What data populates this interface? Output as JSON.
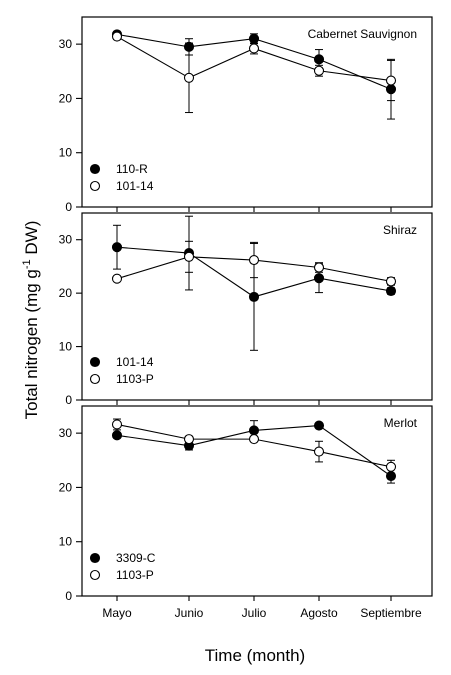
{
  "chart_data": {
    "type": "line",
    "xlabel": "Time (month)",
    "ylabel": {
      "prefix": "Total nitrogen (mg g",
      "sup": "-1",
      "suffix": " DW)"
    },
    "categories": [
      "Mayo",
      "Junio",
      "Julio",
      "Agosto",
      "Septiembre"
    ],
    "ylim": [
      0,
      35
    ],
    "yticks": [
      "0",
      "10",
      "20",
      "30"
    ],
    "grid": false,
    "legend_position": "bottom-left",
    "panels": [
      {
        "title": "Cabernet Sauvignon",
        "series": [
          {
            "name": "110-R",
            "marker": "filled",
            "values": [
              31.8,
              29.5,
              31.0,
              27.2,
              21.7
            ],
            "errors": [
              0.5,
              1.5,
              0.9,
              1.8,
              5.5
            ]
          },
          {
            "name": "101-14",
            "marker": "open",
            "values": [
              31.4,
              23.8,
              29.2,
              25.1,
              23.3
            ],
            "errors": [
              0.5,
              6.4,
              1.0,
              1.0,
              3.7
            ]
          }
        ]
      },
      {
        "title": "Shiraz",
        "series": [
          {
            "name": "101-14",
            "marker": "filled",
            "values": [
              28.6,
              27.5,
              19.3,
              22.8,
              20.4
            ],
            "errors": [
              4.1,
              6.9,
              10.0,
              2.7,
              0.6
            ]
          },
          {
            "name": "1103-P",
            "marker": "open",
            "values": [
              22.7,
              26.8,
              26.2,
              24.8,
              22.2
            ],
            "errors": [
              0.4,
              2.9,
              3.3,
              0.9,
              0.7
            ]
          }
        ]
      },
      {
        "title": "Merlot",
        "series": [
          {
            "name": "3309-C",
            "marker": "filled",
            "values": [
              29.6,
              27.7,
              30.5,
              31.4,
              22.1
            ],
            "errors": [
              0.5,
              0.8,
              1.8,
              0.4,
              1.3
            ]
          },
          {
            "name": "1103-P",
            "marker": "open",
            "values": [
              31.6,
              28.9,
              28.9,
              26.6,
              23.8
            ],
            "errors": [
              1.0,
              0.4,
              0.4,
              1.9,
              1.2
            ]
          }
        ]
      }
    ]
  }
}
